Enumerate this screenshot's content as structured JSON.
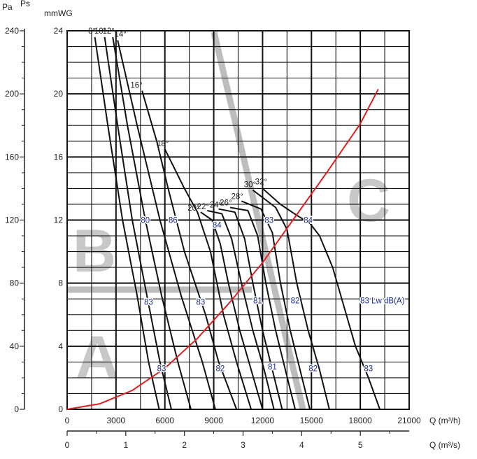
{
  "chart_data": {
    "type": "line",
    "title": "",
    "x_axes": [
      {
        "unit": "Q (m³/h)",
        "ticks": [
          "0",
          "3000",
          "6000",
          "9000",
          "12000",
          "15000",
          "18000",
          "21000"
        ],
        "range": [
          0,
          21000
        ]
      },
      {
        "unit": "Q (m³/s)",
        "ticks": [
          "0",
          "1",
          "2",
          "3",
          "4",
          "5"
        ],
        "range": [
          0,
          5.833
        ]
      }
    ],
    "y_axes": [
      {
        "unit": "Pa",
        "ticks": [
          "0",
          "40",
          "80",
          "120",
          "160",
          "200",
          "240"
        ],
        "range": [
          0,
          240
        ]
      },
      {
        "unit": "Ps",
        "ticks": [],
        "range": [
          0,
          240
        ]
      },
      {
        "unit": "mmWG",
        "ticks": [
          "0",
          "4",
          "8",
          "12",
          "16",
          "20",
          "24"
        ],
        "range": [
          0,
          24
        ]
      }
    ],
    "grid": true,
    "zones": [
      "A",
      "B",
      "C"
    ],
    "series": [
      {
        "name": "8°",
        "x": [
          1700,
          2500,
          3400,
          4300,
          5000,
          5650
        ],
        "y": [
          236,
          180,
          120,
          72,
          30,
          0
        ]
      },
      {
        "name": "10°",
        "x": [
          2300,
          3100,
          4000,
          4900,
          5700,
          6400
        ],
        "y": [
          236,
          180,
          120,
          72,
          30,
          0
        ]
      },
      {
        "name": "12°",
        "x": [
          2800,
          3700,
          4800,
          5800,
          6800,
          7600
        ],
        "y": [
          236,
          180,
          120,
          72,
          30,
          0
        ]
      },
      {
        "name": "14°",
        "x": [
          3100,
          4300,
          5700,
          7000,
          8300,
          9100
        ],
        "y": [
          234,
          180,
          120,
          72,
          30,
          0
        ]
      },
      {
        "name": "16°",
        "x": [
          4600,
          5500,
          6200,
          7200,
          8500,
          9300,
          10400
        ],
        "y": [
          202,
          170,
          140,
          100,
          60,
          30,
          0
        ]
      },
      {
        "name": "18°",
        "x": [
          6000,
          7200,
          8000,
          8800,
          9600,
          10400,
          11300
        ],
        "y": [
          165,
          140,
          125,
          100,
          60,
          30,
          0
        ]
      },
      {
        "name": "20°",
        "x": [
          8200,
          8900,
          9400,
          9900,
          10600,
          11300,
          12000
        ],
        "y": [
          125,
          120,
          105,
          80,
          50,
          25,
          0
        ]
      },
      {
        "name": "22°",
        "x": [
          8600,
          9500,
          10100,
          10700,
          11400,
          12100,
          12700
        ],
        "y": [
          126,
          124,
          108,
          80,
          50,
          25,
          0
        ]
      },
      {
        "name": "24°",
        "x": [
          9300,
          10300,
          10900,
          11400,
          12000,
          12600,
          13200
        ],
        "y": [
          127,
          125,
          108,
          80,
          50,
          25,
          0
        ]
      },
      {
        "name": "26°",
        "x": [
          10000,
          11100,
          11700,
          12200,
          12800,
          13400,
          14000
        ],
        "y": [
          128,
          126,
          110,
          80,
          50,
          25,
          0
        ]
      },
      {
        "name": "28°",
        "x": [
          10700,
          11900,
          12600,
          13100,
          13700,
          14300,
          14900
        ],
        "y": [
          132,
          127,
          112,
          80,
          50,
          25,
          0
        ]
      },
      {
        "name": "30°",
        "x": [
          11400,
          12800,
          13500,
          14100,
          14800,
          15500,
          16100
        ],
        "y": [
          139,
          128,
          114,
          80,
          50,
          25,
          0
        ]
      },
      {
        "name": "32°",
        "x": [
          12000,
          13100,
          14100,
          14900,
          15500,
          16300,
          17000,
          17700,
          18500,
          19200
        ],
        "y": [
          140,
          130,
          123,
          118,
          110,
          90,
          65,
          40,
          20,
          0
        ]
      }
    ],
    "system_curve": {
      "color": "#e02020",
      "x": [
        0,
        2000,
        4000,
        6000,
        8000,
        10000,
        12000,
        14000,
        16000,
        18000,
        19100
      ],
      "y": [
        0,
        3.5,
        12,
        26,
        45,
        68,
        93,
        122,
        151,
        181,
        203
      ]
    },
    "lwa_labels": [
      {
        "text": "80",
        "x": 4800,
        "y": 120
      },
      {
        "text": "86",
        "x": 6500,
        "y": 120
      },
      {
        "text": "84",
        "x": 9200,
        "y": 117
      },
      {
        "text": "83",
        "x": 12400,
        "y": 120
      },
      {
        "text": "84",
        "x": 14800,
        "y": 120
      },
      {
        "text": "83",
        "x": 5000,
        "y": 68
      },
      {
        "text": "83",
        "x": 8200,
        "y": 68
      },
      {
        "text": "81",
        "x": 11700,
        "y": 69
      },
      {
        "text": "82",
        "x": 14000,
        "y": 69
      },
      {
        "text": "83 Lw dB(A)",
        "x": 18000,
        "y": 69
      },
      {
        "text": "83",
        "x": 5800,
        "y": 26
      },
      {
        "text": "82",
        "x": 9400,
        "y": 26
      },
      {
        "text": "81",
        "x": 12600,
        "y": 27
      },
      {
        "text": "82",
        "x": 15100,
        "y": 26
      },
      {
        "text": "83",
        "x": 18500,
        "y": 26
      }
    ]
  }
}
